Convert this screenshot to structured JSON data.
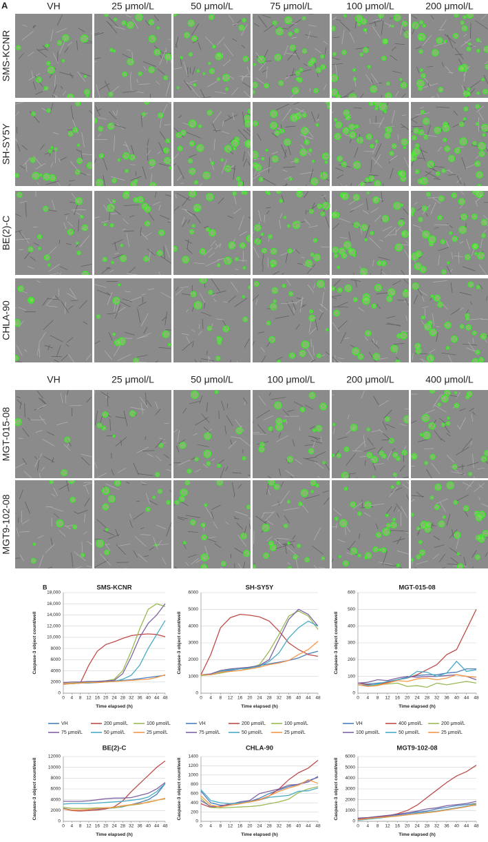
{
  "panel_a": {
    "label": "A",
    "group_1": {
      "columns": [
        "VH",
        "25 μmol/L",
        "50 μmol/L",
        "75 μmol/L",
        "100 μmol/L",
        "200 μmol/L"
      ],
      "rows": [
        "SMS-KCNR",
        "SH-SY5Y",
        "BE(2)-C",
        "CHLA-90"
      ]
    },
    "group_2": {
      "columns": [
        "VH",
        "25 μmol/L",
        "50 μmol/L",
        "100 μmol/L",
        "200 μmol/L",
        "400 μmol/L"
      ],
      "rows": [
        "MGT-015-08",
        "MGT9-102-08"
      ]
    }
  },
  "panel_b_label": "B",
  "chart_data": [
    {
      "type": "line",
      "title": "SMS-KCNR",
      "x_label": "Time elapsed (h)",
      "y_label": "Caspase-3 object count/well",
      "x": [
        0,
        4,
        8,
        12,
        16,
        20,
        24,
        28,
        32,
        36,
        40,
        44,
        48
      ],
      "xlim": [
        0,
        48
      ],
      "xticks": [
        0,
        4,
        8,
        12,
        16,
        20,
        24,
        28,
        32,
        36,
        40,
        44,
        48
      ],
      "ylim": [
        0,
        18000
      ],
      "yticks": [
        0,
        {
          "value": 2000,
          "label": "2000"
        },
        {
          "value": 4000,
          "label": "4000"
        },
        {
          "value": 6000,
          "label": "6000"
        },
        {
          "value": 8000,
          "label": "8000"
        },
        {
          "value": 10000,
          "label": "10,000"
        },
        {
          "value": 12000,
          "label": "12,000"
        },
        {
          "value": 14000,
          "label": "14,000"
        },
        {
          "value": 16000,
          "label": "16,000"
        },
        {
          "value": 18000,
          "label": "18,000"
        }
      ],
      "grid": true,
      "legend": true,
      "series": [
        {
          "name": "VH",
          "color": "#4a7ebb",
          "values": [
            1700,
            1700,
            1800,
            1900,
            2000,
            2100,
            2200,
            2300,
            2400,
            2600,
            2800,
            3000,
            3200
          ]
        },
        {
          "name": "200 μmol/L",
          "color": "#be4b48",
          "values": [
            1600,
            1700,
            1800,
            5000,
            7500,
            8700,
            9200,
            9800,
            10300,
            10500,
            10600,
            10500,
            10100
          ]
        },
        {
          "name": "100 μmol/L",
          "color": "#98b954",
          "values": [
            1800,
            1800,
            1900,
            2000,
            2100,
            2200,
            2500,
            4000,
            7500,
            11500,
            15000,
            16000,
            15500
          ]
        },
        {
          "name": "75 μmol/L",
          "color": "#7d60a0",
          "values": [
            1900,
            2000,
            2000,
            2100,
            2100,
            2200,
            2300,
            3500,
            6500,
            10000,
            12500,
            14000,
            16000
          ]
        },
        {
          "name": "50 μmol/L",
          "color": "#46aac5",
          "values": [
            1700,
            1700,
            1800,
            1800,
            1900,
            2000,
            2100,
            2500,
            3200,
            5000,
            8000,
            10500,
            13000
          ]
        },
        {
          "name": "25 μmol/L",
          "color": "#f79646",
          "values": [
            1700,
            1700,
            1800,
            1900,
            1900,
            2000,
            2100,
            2200,
            2300,
            2400,
            2500,
            2800,
            3300
          ]
        }
      ]
    },
    {
      "type": "line",
      "title": "SH-SY5Y",
      "x_label": "Time elapsed (h)",
      "y_label": "Caspase-3 object count/well",
      "x": [
        0,
        4,
        8,
        12,
        16,
        20,
        24,
        28,
        32,
        36,
        40,
        44,
        48
      ],
      "xlim": [
        0,
        48
      ],
      "xticks": [
        0,
        4,
        8,
        12,
        16,
        20,
        24,
        28,
        32,
        36,
        40,
        44,
        48
      ],
      "ylim": [
        0,
        6000
      ],
      "yticks": [
        0,
        1000,
        2000,
        3000,
        4000,
        5000,
        6000
      ],
      "grid": true,
      "legend": true,
      "series": [
        {
          "name": "VH",
          "color": "#4a7ebb",
          "values": [
            1100,
            1100,
            1250,
            1350,
            1450,
            1550,
            1650,
            1750,
            1850,
            1950,
            2100,
            2350,
            2500
          ]
        },
        {
          "name": "200 μmol/L",
          "color": "#be4b48",
          "values": [
            1100,
            2300,
            3900,
            4500,
            4700,
            4650,
            4550,
            4300,
            3700,
            3000,
            2600,
            2300,
            2200
          ]
        },
        {
          "name": "100 μmol/L",
          "color": "#98b954",
          "values": [
            1050,
            1100,
            1200,
            1300,
            1350,
            1500,
            1700,
            2500,
            3500,
            4600,
            4900,
            4600,
            3800
          ]
        },
        {
          "name": "75 μmol/L",
          "color": "#7d60a0",
          "values": [
            1100,
            1150,
            1350,
            1450,
            1500,
            1550,
            1650,
            2000,
            3200,
            4400,
            5000,
            4700,
            4000
          ]
        },
        {
          "name": "50 μmol/L",
          "color": "#46aac5",
          "values": [
            1100,
            1100,
            1300,
            1400,
            1450,
            1500,
            1600,
            1900,
            2400,
            3300,
            3900,
            4300,
            4000
          ]
        },
        {
          "name": "25 μmol/L",
          "color": "#f79646",
          "values": [
            1100,
            1100,
            1250,
            1300,
            1350,
            1450,
            1550,
            1700,
            1800,
            1950,
            2300,
            2600,
            3100
          ]
        }
      ]
    },
    {
      "type": "line",
      "title": "MGT-015-08",
      "x_label": "Time elapsed (h)",
      "y_label": "Caspase-3 object count/well",
      "x": [
        0,
        4,
        8,
        12,
        16,
        20,
        24,
        28,
        32,
        36,
        40,
        44,
        48
      ],
      "xlim": [
        0,
        48
      ],
      "xticks": [
        0,
        4,
        8,
        12,
        16,
        20,
        24,
        28,
        32,
        36,
        40,
        44,
        48
      ],
      "ylim": [
        0,
        600
      ],
      "yticks": [
        0,
        100,
        200,
        300,
        400,
        500,
        600
      ],
      "grid": true,
      "legend": true,
      "series": [
        {
          "name": "VH",
          "color": "#4a7ebb",
          "values": [
            60,
            55,
            60,
            65,
            80,
            95,
            105,
            110,
            110,
            120,
            125,
            145,
            145
          ]
        },
        {
          "name": "400 μmol/L",
          "color": "#be4b48",
          "values": [
            60,
            50,
            50,
            65,
            80,
            90,
            110,
            140,
            170,
            230,
            260,
            380,
            500
          ]
        },
        {
          "name": "200 μmol/L",
          "color": "#98b954",
          "values": [
            50,
            45,
            50,
            55,
            60,
            40,
            45,
            35,
            60,
            50,
            60,
            70,
            60
          ]
        },
        {
          "name": "100 μmol/L",
          "color": "#7d60a0",
          "values": [
            60,
            65,
            80,
            75,
            90,
            100,
            95,
            100,
            100,
            105,
            110,
            100,
            80
          ]
        },
        {
          "name": "50 μmol/L",
          "color": "#46aac5",
          "values": [
            50,
            45,
            55,
            70,
            80,
            90,
            130,
            125,
            100,
            120,
            190,
            130,
            140
          ]
        },
        {
          "name": "25 μmol/L",
          "color": "#f79646",
          "values": [
            50,
            40,
            45,
            60,
            75,
            70,
            85,
            90,
            80,
            90,
            110,
            100,
            95
          ]
        }
      ]
    },
    {
      "type": "line",
      "title": "BE(2)-C",
      "x_label": "Time elapsed (h)",
      "y_label": "Caspase-3 object count/well",
      "x": [
        0,
        4,
        8,
        12,
        16,
        20,
        24,
        28,
        32,
        36,
        40,
        44,
        48
      ],
      "xlim": [
        0,
        48
      ],
      "xticks": [
        0,
        4,
        8,
        12,
        16,
        20,
        24,
        28,
        32,
        36,
        40,
        44,
        48
      ],
      "ylim": [
        0,
        12000
      ],
      "yticks": [
        0,
        2000,
        4000,
        6000,
        8000,
        10000,
        12000
      ],
      "grid": true,
      "legend": false,
      "series": [
        {
          "color": "#4a7ebb",
          "values": [
            2400,
            2100,
            2100,
            2200,
            2300,
            2400,
            2500,
            2700,
            3100,
            3500,
            4000,
            5000,
            7000
          ]
        },
        {
          "color": "#be4b48",
          "values": [
            2300,
            2000,
            1900,
            2000,
            2100,
            2300,
            2700,
            3800,
            5500,
            7000,
            8500,
            10000,
            11200
          ]
        },
        {
          "color": "#98b954",
          "values": [
            2600,
            2400,
            2400,
            2400,
            2500,
            2500,
            2500,
            2800,
            3000,
            3200,
            3600,
            3900,
            4200
          ]
        },
        {
          "color": "#7d60a0",
          "values": [
            3700,
            3700,
            3700,
            3800,
            4000,
            4200,
            4300,
            4300,
            4400,
            4800,
            5200,
            6000,
            7200
          ]
        },
        {
          "color": "#46aac5",
          "values": [
            3200,
            3300,
            3300,
            3300,
            3400,
            3500,
            3600,
            3700,
            3900,
            4100,
            4500,
            5500,
            7000
          ]
        },
        {
          "color": "#f79646",
          "values": [
            2300,
            2100,
            2100,
            2200,
            2400,
            2500,
            2600,
            2900,
            3100,
            3300,
            3500,
            3900,
            4300
          ]
        }
      ]
    },
    {
      "type": "line",
      "title": "CHLA-90",
      "x_label": "Time elapsed (h)",
      "y_label": "Caspase-3 object count/well",
      "x": [
        0,
        4,
        8,
        12,
        16,
        20,
        24,
        28,
        32,
        36,
        40,
        44,
        48
      ],
      "xlim": [
        0,
        48
      ],
      "xticks": [
        0,
        4,
        8,
        12,
        16,
        20,
        24,
        28,
        32,
        36,
        40,
        44,
        48
      ],
      "ylim": [
        0,
        1400
      ],
      "yticks": [
        0,
        200,
        400,
        600,
        800,
        1000,
        1200,
        1400
      ],
      "grid": true,
      "legend": false,
      "series": [
        {
          "color": "#4a7ebb",
          "values": [
            650,
            400,
            350,
            350,
            380,
            430,
            500,
            600,
            680,
            750,
            800,
            880,
            950
          ]
        },
        {
          "color": "#be4b48",
          "values": [
            380,
            300,
            330,
            380,
            400,
            430,
            470,
            550,
            700,
            900,
            1050,
            1150,
            1320
          ]
        },
        {
          "color": "#98b954",
          "values": [
            500,
            300,
            290,
            300,
            310,
            320,
            340,
            380,
            420,
            480,
            620,
            700,
            750
          ]
        },
        {
          "color": "#7d60a0",
          "values": [
            450,
            320,
            330,
            370,
            420,
            450,
            600,
            650,
            700,
            780,
            800,
            850,
            970
          ]
        },
        {
          "color": "#46aac5",
          "values": [
            680,
            450,
            400,
            380,
            400,
            430,
            460,
            520,
            540,
            560,
            650,
            660,
            720
          ]
        },
        {
          "color": "#f79646",
          "values": [
            550,
            350,
            310,
            350,
            380,
            420,
            460,
            550,
            650,
            720,
            780,
            900,
            820
          ]
        }
      ]
    },
    {
      "type": "line",
      "title": "MGT9-102-08",
      "x_label": "Time elapsed (h)",
      "y_label": "Caspase-3 object count/well",
      "x": [
        0,
        4,
        8,
        12,
        16,
        20,
        24,
        28,
        32,
        36,
        40,
        44,
        48
      ],
      "xlim": [
        0,
        48
      ],
      "xticks": [
        0,
        4,
        8,
        12,
        16,
        20,
        24,
        28,
        32,
        36,
        40,
        44,
        48
      ],
      "ylim": [
        0,
        6000
      ],
      "yticks": [
        0,
        1000,
        2000,
        3000,
        4000,
        5000,
        6000
      ],
      "grid": true,
      "legend": false,
      "series": [
        {
          "color": "#4a7ebb",
          "values": [
            250,
            300,
            400,
            500,
            600,
            700,
            850,
            950,
            1150,
            1300,
            1450,
            1550,
            1650
          ]
        },
        {
          "color": "#be4b48",
          "values": [
            200,
            300,
            400,
            500,
            700,
            1000,
            1500,
            2200,
            2900,
            3600,
            4200,
            4600,
            5200
          ]
        },
        {
          "color": "#98b954",
          "values": [
            150,
            200,
            300,
            400,
            500,
            600,
            700,
            800,
            900,
            1100,
            1200,
            1400,
            1600
          ]
        },
        {
          "color": "#7d60a0",
          "values": [
            300,
            350,
            450,
            550,
            650,
            800,
            950,
            1150,
            1250,
            1450,
            1550,
            1650,
            1850
          ]
        },
        {
          "color": "#46aac5",
          "values": [
            100,
            200,
            300,
            400,
            500,
            600,
            750,
            850,
            950,
            1100,
            1250,
            1400,
            1500
          ]
        },
        {
          "color": "#f79646",
          "values": [
            150,
            250,
            350,
            400,
            500,
            600,
            700,
            800,
            900,
            1050,
            1200,
            1350,
            1550
          ]
        }
      ]
    }
  ]
}
